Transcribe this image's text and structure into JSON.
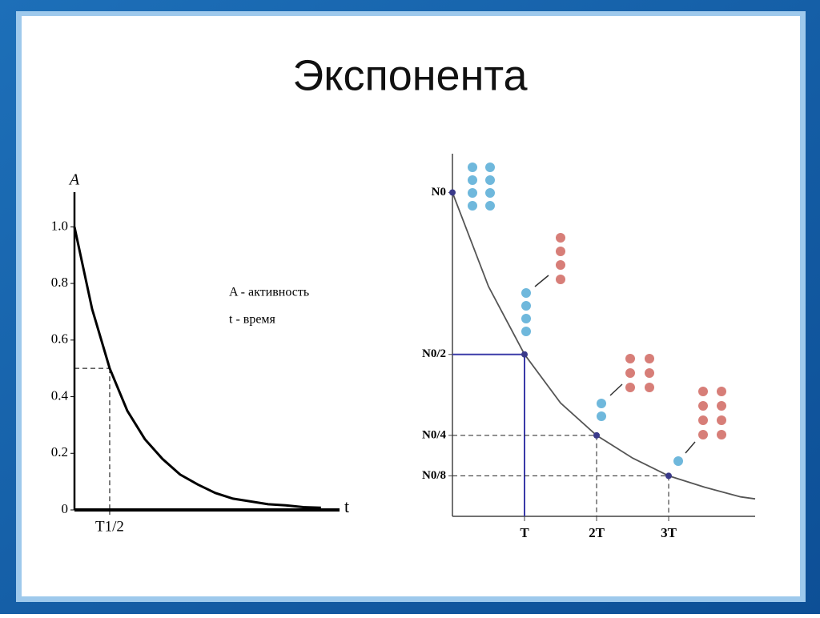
{
  "title": "Экспонента",
  "chart_data": [
    {
      "type": "line",
      "y_label": "A",
      "x_label": "t",
      "annotations": [
        "A - активность",
        "t - время"
      ],
      "x": [
        0,
        0.5,
        1,
        1.5,
        2,
        2.5,
        3,
        3.5,
        4,
        4.5,
        5,
        5.5,
        6,
        6.5,
        7
      ],
      "series": [
        {
          "color": "#000000",
          "values": [
            1,
            0.71,
            0.5,
            0.35,
            0.25,
            0.18,
            0.125,
            0.09,
            0.06,
            0.04,
            0.03,
            0.02,
            0.016,
            0.01,
            0.008
          ]
        }
      ],
      "xlim": [
        0,
        7.3
      ],
      "ylim": [
        0,
        1.1
      ],
      "xticks": [
        {
          "value": 1,
          "label": "T1/2"
        }
      ],
      "yticks": [
        0,
        0.2,
        0.4,
        0.6,
        0.8,
        {
          "value": 1,
          "label": "1.0"
        }
      ]
    },
    {
      "type": "line",
      "x": [
        0,
        0.5,
        1,
        1.5,
        2,
        2.5,
        3,
        3.5,
        4,
        4.2
      ],
      "series": [
        {
          "color": "#555555",
          "values": [
            1,
            0.71,
            0.5,
            0.35,
            0.25,
            0.18,
            0.125,
            0.09,
            0.06,
            0.054
          ]
        }
      ],
      "xlim": [
        0,
        4.2
      ],
      "ylim": [
        0,
        1.1
      ],
      "xticks": [
        {
          "value": 1,
          "label": "T"
        },
        {
          "value": 2,
          "label": "2T"
        },
        {
          "value": 3,
          "label": "3T"
        }
      ],
      "yticks": [
        {
          "value": 0.125,
          "label": "N0/8"
        },
        {
          "value": 0.25,
          "label": "N0/4"
        },
        {
          "value": 0.5,
          "label": "N0/2"
        },
        {
          "value": 1,
          "label": "N0"
        }
      ]
    }
  ]
}
